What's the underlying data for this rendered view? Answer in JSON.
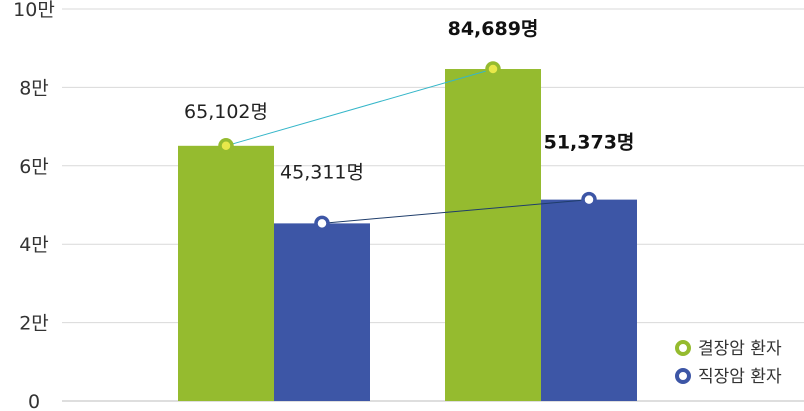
{
  "chart_data": {
    "type": "bar",
    "categories": [
      "",
      ""
    ],
    "series": [
      {
        "name": "결장암 환자",
        "values": [
          65102,
          84689
        ],
        "color": "#95bb2f",
        "marker_fill": "#e8e84a",
        "line_color": "#35b6c9"
      },
      {
        "name": "직장암 환자",
        "values": [
          45311,
          51373
        ],
        "color": "#3d56a6",
        "marker_fill": "#ffffff",
        "line_color": "#1f3d6b"
      }
    ],
    "data_labels": [
      [
        "65,102명",
        "84,689명"
      ],
      [
        "45,311명",
        "51,373명"
      ]
    ],
    "bold_labels": [
      [
        false,
        true
      ],
      [
        false,
        true
      ]
    ],
    "yticks": [
      {
        "value": 0,
        "label": "0"
      },
      {
        "value": 20000,
        "label": "2만"
      },
      {
        "value": 40000,
        "label": "4만"
      },
      {
        "value": 60000,
        "label": "6만"
      },
      {
        "value": 80000,
        "label": "8만"
      },
      {
        "value": 100000,
        "label": "10만"
      }
    ],
    "ylim": [
      0,
      100000
    ],
    "grid": true,
    "legend_position": "bottom-right",
    "title": "",
    "xlabel": "",
    "ylabel": ""
  }
}
